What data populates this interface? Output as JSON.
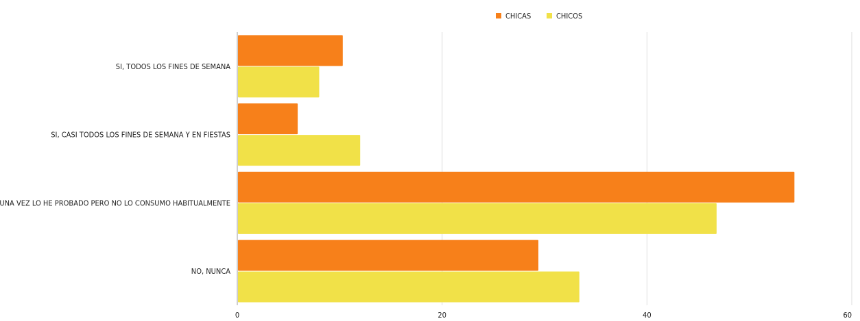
{
  "chart_data": {
    "type": "bar",
    "orientation": "horizontal",
    "categories": [
      "SI, TODOS LOS FINES DE SEMANA",
      "SI, CASI TODOS LOS FINES DE SEMANA Y EN FIESTAS",
      "SI, ALGUNA VEZ LO HE PROBADO PERO NO LO CONSUMO HABITUALMENTE",
      "NO, NUNCA"
    ],
    "series": [
      {
        "name": "CHICAS",
        "color": "#f7801a",
        "values": [
          10.3,
          5.9,
          54.4,
          29.4
        ]
      },
      {
        "name": "CHICOS",
        "color": "#f1e148",
        "values": [
          8.0,
          12.0,
          46.8,
          33.4
        ]
      }
    ],
    "xlim": [
      0,
      60
    ],
    "xticks": [
      "0",
      "20",
      "40",
      "60"
    ],
    "grid": true,
    "legend_position": "top-center"
  }
}
